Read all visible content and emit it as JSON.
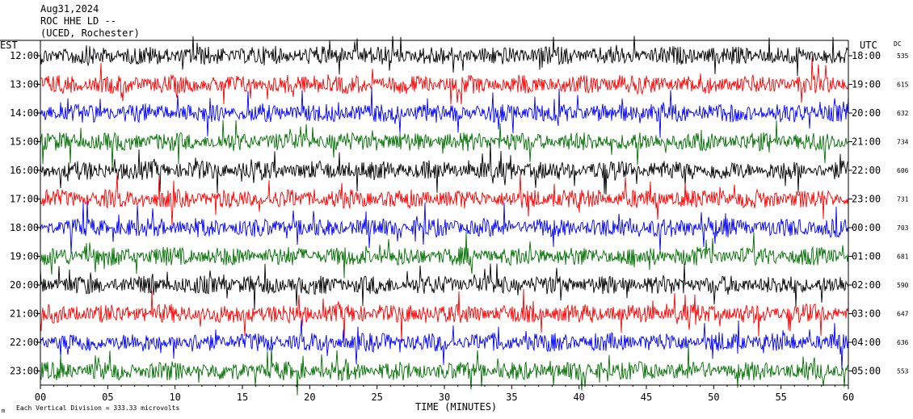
{
  "header": {
    "date": "Aug31,2024",
    "station": "ROC HHE LD --",
    "location": "(UCED, Rochester)"
  },
  "footer": {
    "scale_note": "Each Vertical Division =  333.33 microvolts",
    "corner_mark": "m"
  },
  "chart_data": {
    "type": "line",
    "xlabel": "TIME (MINUTES)",
    "x_tick_labels": [
      "00",
      "05",
      "10",
      "15",
      "20",
      "25",
      "30",
      "35",
      "40",
      "45",
      "50",
      "55",
      "60"
    ],
    "xlim": [
      0,
      60
    ],
    "left_axis_title": "EST",
    "right_axis_title": "UTC",
    "dc_title": "DC",
    "trace_colors": [
      "#000000",
      "#ff0000",
      "#0000ff",
      "#007000"
    ],
    "rows": [
      {
        "est": "12:00",
        "utc": "18:00",
        "dc": "535"
      },
      {
        "est": "13:00",
        "utc": "19:00",
        "dc": "615"
      },
      {
        "est": "14:00",
        "utc": "20:00",
        "dc": "632"
      },
      {
        "est": "15:00",
        "utc": "21:00",
        "dc": "734"
      },
      {
        "est": "16:00",
        "utc": "22:00",
        "dc": "606"
      },
      {
        "est": "17:00",
        "utc": "23:00",
        "dc": "731"
      },
      {
        "est": "18:00",
        "utc": "00:00",
        "dc": "703"
      },
      {
        "est": "19:00",
        "utc": "01:00",
        "dc": "681"
      },
      {
        "est": "20:00",
        "utc": "02:00",
        "dc": "590"
      },
      {
        "est": "21:00",
        "utc": "03:00",
        "dc": "647"
      },
      {
        "est": "22:00",
        "utc": "04:00",
        "dc": "636"
      },
      {
        "est": "23:00",
        "utc": "05:00",
        "dc": "553"
      }
    ]
  }
}
